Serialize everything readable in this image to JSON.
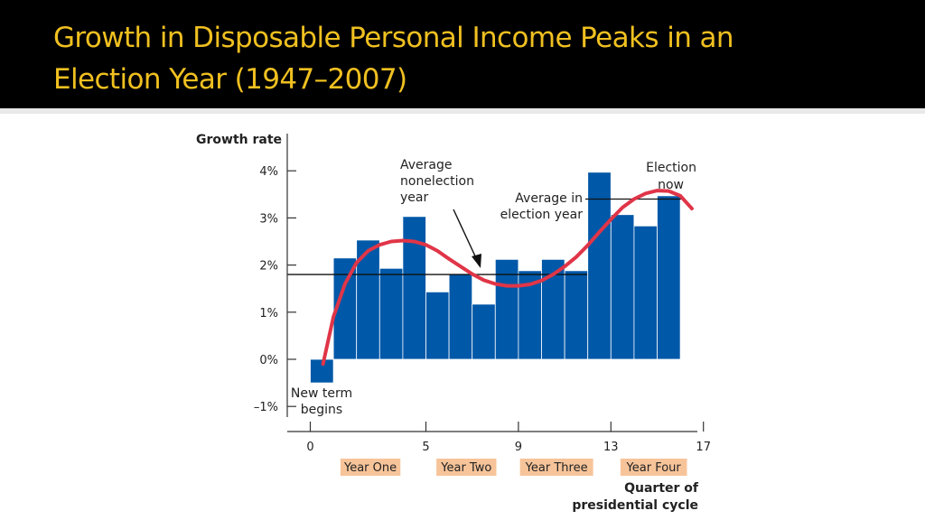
{
  "slide": {
    "title_line_1": "Growth in Disposable Personal Income Peaks in an",
    "title_line_2": "Election Year (1947–2007)",
    "title_color": "#f0c020",
    "background_color": "#000000"
  },
  "chart_data": {
    "type": "bar",
    "ylabel": "Growth rate",
    "xlabel_line_1": "Quarter of",
    "xlabel_line_2": "presidential cycle",
    "y_ticks": [
      {
        "value": 4,
        "label": "4%"
      },
      {
        "value": 3,
        "label": "3%"
      },
      {
        "value": 2,
        "label": "2%"
      },
      {
        "value": 1,
        "label": "1%"
      },
      {
        "value": 0,
        "label": "0%"
      },
      {
        "value": -1,
        "label": "–1%"
      }
    ],
    "x_ticks": [
      {
        "value": 0,
        "label": "0"
      },
      {
        "value": 5,
        "label": "5"
      },
      {
        "value": 9,
        "label": "9"
      },
      {
        "value": 13,
        "label": "13"
      },
      {
        "value": 17,
        "label": "17"
      }
    ],
    "ylim": [
      -1.5,
      4.6
    ],
    "xlim": [
      0,
      17
    ],
    "quarters": [
      1,
      2,
      3,
      4,
      5,
      6,
      7,
      8,
      9,
      10,
      11,
      12,
      13,
      14,
      15,
      16
    ],
    "values": [
      -0.5,
      2.15,
      2.53,
      1.93,
      3.03,
      1.43,
      1.8,
      1.17,
      2.12,
      1.88,
      2.12,
      1.88,
      3.97,
      3.07,
      2.83,
      3.47
    ],
    "bar_color": "#0058a8",
    "average_nonelection_year": 1.8,
    "average_election_year": 3.4,
    "trend_line_color": "#e03548",
    "trend_curve": [
      [
        0.55,
        -0.1
      ],
      [
        1.0,
        0.9
      ],
      [
        1.5,
        1.6
      ],
      [
        2.0,
        2.05
      ],
      [
        2.5,
        2.3
      ],
      [
        3.0,
        2.43
      ],
      [
        3.5,
        2.5
      ],
      [
        4.0,
        2.52
      ],
      [
        4.5,
        2.5
      ],
      [
        5.0,
        2.43
      ],
      [
        5.5,
        2.3
      ],
      [
        6.0,
        2.13
      ],
      [
        6.5,
        1.97
      ],
      [
        7.0,
        1.81
      ],
      [
        7.5,
        1.68
      ],
      [
        8.0,
        1.6
      ],
      [
        8.5,
        1.56
      ],
      [
        9.0,
        1.56
      ],
      [
        9.5,
        1.59
      ],
      [
        10.0,
        1.67
      ],
      [
        10.5,
        1.8
      ],
      [
        11.0,
        1.97
      ],
      [
        11.5,
        2.17
      ],
      [
        12.0,
        2.42
      ],
      [
        12.5,
        2.7
      ],
      [
        13.0,
        2.97
      ],
      [
        13.5,
        3.22
      ],
      [
        14.0,
        3.4
      ],
      [
        14.5,
        3.52
      ],
      [
        15.0,
        3.58
      ],
      [
        15.5,
        3.57
      ],
      [
        16.0,
        3.47
      ],
      [
        16.5,
        3.2
      ]
    ],
    "annotations": {
      "new_term": [
        "New term",
        "begins"
      ],
      "avg_nonelection": [
        "Average",
        "nonelection",
        "year"
      ],
      "avg_election": [
        "Average in",
        "election year"
      ],
      "election_now": [
        "Election",
        "now"
      ]
    },
    "year_labels": [
      {
        "label": "Year One",
        "center_quarter": 2.6
      },
      {
        "label": "Year Two",
        "center_quarter": 6.75
      },
      {
        "label": "Year Three",
        "center_quarter": 10.65
      },
      {
        "label": "Year Four",
        "center_quarter": 14.85
      }
    ],
    "year_label_color": "#f7c49a",
    "grid": false
  }
}
